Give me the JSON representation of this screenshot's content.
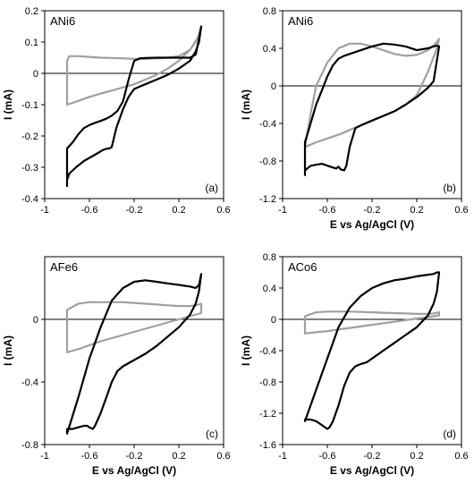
{
  "chart_data": [
    {
      "type": "line",
      "panel_label": "ANi6",
      "panel_tag": "(a)",
      "xlabel": "",
      "ylabel": "I (mA)",
      "xlim": [
        -1,
        0.6
      ],
      "ylim": [
        -0.4,
        0.2
      ],
      "xticks": [
        -1,
        -0.6,
        -0.2,
        0.2,
        0.6
      ],
      "xtick_labels": [
        "-1",
        "-0.6",
        "-0.2",
        "0.2",
        "0.6"
      ],
      "yticks": [
        -0.4,
        -0.3,
        -0.2,
        -0.1,
        0,
        0.1,
        0.2
      ],
      "ytick_labels": [
        "-0.4",
        "-0.3",
        "-0.2",
        "-0.1",
        "0",
        "0.1",
        "0.2"
      ],
      "grid": false,
      "series": [
        {
          "color": "#a0a0a0",
          "x": [
            -0.8,
            -0.8,
            -0.78,
            -0.7,
            -0.5,
            -0.3,
            -0.2,
            -0.1,
            0,
            0.1,
            0.2,
            0.3,
            0.35,
            0.38,
            0.4,
            0.38,
            0.3,
            0.2,
            0.1,
            0,
            -0.1,
            -0.2,
            -0.3,
            -0.4,
            -0.5,
            -0.6,
            -0.7,
            -0.8
          ],
          "y": [
            -0.1,
            0.04,
            0.055,
            0.055,
            0.05,
            0.048,
            0.046,
            0.046,
            0.048,
            0.05,
            0.055,
            0.075,
            0.1,
            0.125,
            0.15,
            0.12,
            0.075,
            0.04,
            0.015,
            -0.005,
            -0.02,
            -0.035,
            -0.045,
            -0.055,
            -0.065,
            -0.075,
            -0.088,
            -0.1
          ]
        },
        {
          "color": "#000000",
          "x": [
            -0.8,
            -0.8,
            -0.78,
            -0.72,
            -0.65,
            -0.55,
            -0.48,
            -0.44,
            -0.42,
            -0.4,
            -0.36,
            -0.3,
            -0.25,
            -0.2,
            -0.15,
            -0.1,
            0,
            0.1,
            0.2,
            0.3,
            0.35,
            0.38,
            0.4,
            0.38,
            0.35,
            0.3,
            0.2,
            0.1,
            0,
            -0.1,
            -0.15,
            -0.2,
            -0.25,
            -0.3,
            -0.35,
            -0.4,
            -0.45,
            -0.5,
            -0.55,
            -0.6,
            -0.65,
            -0.7,
            -0.75,
            -0.8
          ],
          "y": [
            -0.36,
            -0.34,
            -0.32,
            -0.3,
            -0.28,
            -0.26,
            -0.245,
            -0.24,
            -0.24,
            -0.235,
            -0.175,
            -0.115,
            -0.075,
            -0.05,
            -0.042,
            -0.035,
            -0.02,
            -0.005,
            0.015,
            0.04,
            0.07,
            0.1,
            0.15,
            0.11,
            0.06,
            0.05,
            0.05,
            0.05,
            0.05,
            0.049,
            0.048,
            0.04,
            -0.02,
            -0.09,
            -0.12,
            -0.135,
            -0.145,
            -0.152,
            -0.158,
            -0.165,
            -0.175,
            -0.195,
            -0.22,
            -0.24
          ]
        }
      ]
    },
    {
      "type": "line",
      "panel_label": "ANi6",
      "panel_tag": "(b)",
      "xlabel": "E vs Ag/AgCl  (V)",
      "ylabel": "I (mA)",
      "xlim": [
        -1,
        0.6
      ],
      "ylim": [
        -1.2,
        0.8
      ],
      "xticks": [
        -1,
        -0.6,
        -0.2,
        0.2,
        0.6
      ],
      "xtick_labels": [
        "-1",
        "-0.6",
        "-0.2",
        "0.2",
        "0.6"
      ],
      "yticks": [
        -1.2,
        -0.8,
        -0.4,
        0,
        0.4,
        0.8
      ],
      "ytick_labels": [
        "-1.2",
        "-0.8",
        "-0.4",
        "0",
        "0.4",
        "0.8"
      ],
      "grid": false,
      "series": [
        {
          "color": "#a0a0a0",
          "x": [
            -0.8,
            -0.75,
            -0.7,
            -0.6,
            -0.5,
            -0.4,
            -0.3,
            -0.2,
            -0.1,
            0,
            0.1,
            0.2,
            0.3,
            0.35,
            0.38,
            0.4,
            0.38,
            0.3,
            0.2,
            0.1,
            0,
            -0.1,
            -0.2,
            -0.3,
            -0.4,
            -0.5,
            -0.6,
            -0.7,
            -0.8
          ],
          "y": [
            -0.65,
            -0.3,
            0,
            0.25,
            0.4,
            0.45,
            0.45,
            0.42,
            0.38,
            0.34,
            0.32,
            0.33,
            0.38,
            0.43,
            0.47,
            0.5,
            0.4,
            0.15,
            -0.1,
            -0.2,
            -0.27,
            -0.32,
            -0.37,
            -0.42,
            -0.47,
            -0.52,
            -0.56,
            -0.6,
            -0.65
          ]
        },
        {
          "color": "#000000",
          "x": [
            -0.8,
            -0.8,
            -0.75,
            -0.65,
            -0.55,
            -0.52,
            -0.5,
            -0.48,
            -0.45,
            -0.43,
            -0.4,
            -0.35,
            -0.3,
            -0.2,
            -0.1,
            0,
            0.1,
            0.2,
            0.3,
            0.35,
            0.4,
            0.38,
            0.35,
            0.3,
            0.2,
            0.1,
            0,
            -0.1,
            -0.2,
            -0.3,
            -0.35,
            -0.4,
            -0.45,
            -0.5,
            -0.55,
            -0.6,
            -0.65,
            -0.7,
            -0.75,
            -0.8
          ],
          "y": [
            -0.95,
            -0.9,
            -0.85,
            -0.83,
            -0.87,
            -0.88,
            -0.86,
            -0.89,
            -0.9,
            -0.85,
            -0.65,
            -0.45,
            -0.42,
            -0.37,
            -0.32,
            -0.27,
            -0.2,
            -0.12,
            -0.02,
            0.05,
            0.42,
            0.43,
            0.42,
            0.4,
            0.38,
            0.42,
            0.44,
            0.45,
            0.42,
            0.38,
            0.36,
            0.34,
            0.32,
            0.29,
            0.22,
            0.1,
            -0.05,
            -0.2,
            -0.4,
            -0.6
          ]
        }
      ]
    },
    {
      "type": "line",
      "panel_label": "AFe6",
      "panel_tag": "(c)",
      "xlabel": "E vs Ag/AgCl  (V)",
      "ylabel": "I (mA)",
      "xlim": [
        -1,
        0.6
      ],
      "ylim": [
        -0.8,
        0.4
      ],
      "xticks": [
        -1,
        -0.6,
        -0.2,
        0.2,
        0.6
      ],
      "xtick_labels": [
        "-1",
        "-0.6",
        "-0.2",
        "0.2",
        "0.6"
      ],
      "yticks": [
        -0.8,
        -0.4,
        0
      ],
      "ytick_labels": [
        "-0.8",
        "-0.4",
        "0"
      ],
      "grid": false,
      "series": [
        {
          "color": "#a0a0a0",
          "x": [
            -0.8,
            -0.8,
            -0.7,
            -0.6,
            -0.5,
            -0.4,
            -0.3,
            -0.2,
            -0.1,
            0,
            0.1,
            0.2,
            0.3,
            0.35,
            0.4,
            0.4,
            0.3,
            0.2,
            0.1,
            0,
            -0.1,
            -0.2,
            -0.3,
            -0.4,
            -0.5,
            -0.6,
            -0.7,
            -0.8
          ],
          "y": [
            -0.21,
            0.06,
            0.1,
            0.11,
            0.11,
            0.11,
            0.11,
            0.105,
            0.1,
            0.095,
            0.09,
            0.085,
            0.085,
            0.09,
            0.1,
            0.04,
            0.02,
            0.0,
            -0.02,
            -0.04,
            -0.06,
            -0.08,
            -0.1,
            -0.12,
            -0.14,
            -0.165,
            -0.19,
            -0.21
          ]
        },
        {
          "color": "#000000",
          "x": [
            -0.8,
            -0.8,
            -0.75,
            -0.7,
            -0.65,
            -0.62,
            -0.6,
            -0.57,
            -0.55,
            -0.5,
            -0.45,
            -0.4,
            -0.35,
            -0.3,
            -0.2,
            -0.1,
            0,
            0.1,
            0.2,
            0.3,
            0.35,
            0.38,
            0.4,
            0.38,
            0.35,
            0.3,
            0.2,
            0.1,
            0,
            -0.1,
            -0.2,
            -0.3,
            -0.4,
            -0.5,
            -0.6,
            -0.7,
            -0.8
          ],
          "y": [
            -0.73,
            -0.7,
            -0.7,
            -0.69,
            -0.68,
            -0.68,
            -0.69,
            -0.7,
            -0.68,
            -0.6,
            -0.5,
            -0.4,
            -0.33,
            -0.3,
            -0.26,
            -0.22,
            -0.17,
            -0.11,
            -0.05,
            0.03,
            0.1,
            0.18,
            0.29,
            0.22,
            0.2,
            0.21,
            0.22,
            0.23,
            0.24,
            0.25,
            0.24,
            0.2,
            0.12,
            -0.05,
            -0.25,
            -0.5,
            -0.73
          ]
        }
      ]
    },
    {
      "type": "line",
      "panel_label": "ACo6",
      "panel_tag": "(d)",
      "xlabel": "E vs Ag/AgCl  (V)",
      "ylabel": "I (mA)",
      "xlim": [
        -1,
        0.6
      ],
      "ylim": [
        -1.6,
        0.8
      ],
      "xticks": [
        -1,
        -0.6,
        -0.2,
        0.2,
        0.6
      ],
      "xtick_labels": [
        "-1",
        "-0.6",
        "-0.2",
        "0.2",
        "0.6"
      ],
      "yticks": [
        -1.6,
        -1.2,
        -0.8,
        -0.4,
        0,
        0.4,
        0.8
      ],
      "ytick_labels": [
        "-1.6",
        "-1.2",
        "-0.8",
        "-0.4",
        "0",
        "0.4",
        "0.8"
      ],
      "grid": false,
      "series": [
        {
          "color": "#a0a0a0",
          "x": [
            -0.8,
            -0.8,
            -0.7,
            -0.6,
            -0.5,
            -0.4,
            -0.3,
            -0.2,
            -0.1,
            0,
            0.1,
            0.2,
            0.3,
            0.35,
            0.4,
            0.4,
            0.3,
            0.2,
            0.1,
            0,
            -0.1,
            -0.2,
            -0.3,
            -0.4,
            -0.5,
            -0.6,
            -0.7,
            -0.8
          ],
          "y": [
            -0.18,
            0.04,
            0.09,
            0.1,
            0.1,
            0.1,
            0.095,
            0.09,
            0.085,
            0.08,
            0.075,
            0.07,
            0.07,
            0.075,
            0.09,
            0.05,
            0.03,
            0.01,
            -0.01,
            -0.03,
            -0.05,
            -0.07,
            -0.09,
            -0.11,
            -0.13,
            -0.15,
            -0.165,
            -0.18
          ]
        },
        {
          "color": "#000000",
          "x": [
            -0.8,
            -0.8,
            -0.75,
            -0.7,
            -0.65,
            -0.6,
            -0.58,
            -0.55,
            -0.5,
            -0.45,
            -0.4,
            -0.35,
            -0.3,
            -0.25,
            -0.2,
            -0.1,
            0,
            0.1,
            0.2,
            0.3,
            0.35,
            0.38,
            0.4,
            0.38,
            0.35,
            0.3,
            0.2,
            0.1,
            0,
            -0.1,
            -0.2,
            -0.3,
            -0.4,
            -0.5,
            -0.6,
            -0.7,
            -0.8
          ],
          "y": [
            -1.3,
            -1.28,
            -1.28,
            -1.3,
            -1.35,
            -1.4,
            -1.38,
            -1.3,
            -1.1,
            -0.85,
            -0.68,
            -0.6,
            -0.57,
            -0.55,
            -0.5,
            -0.4,
            -0.3,
            -0.2,
            -0.1,
            0.05,
            0.2,
            0.35,
            0.6,
            0.6,
            0.58,
            0.57,
            0.55,
            0.52,
            0.5,
            0.46,
            0.4,
            0.3,
            0.15,
            -0.1,
            -0.5,
            -0.9,
            -1.3
          ]
        }
      ]
    }
  ]
}
